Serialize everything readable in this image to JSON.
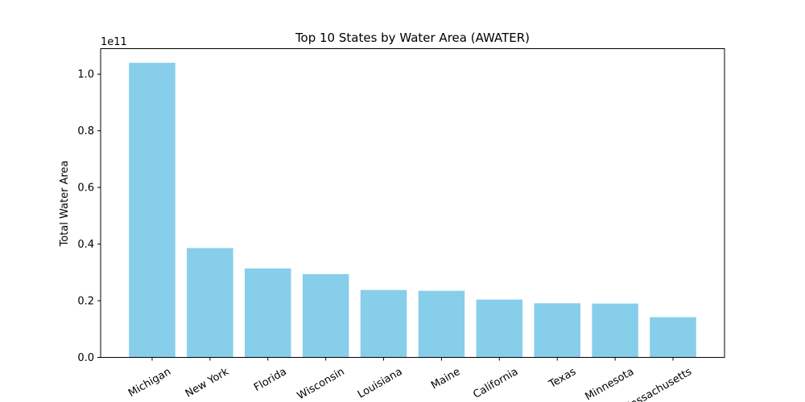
{
  "chart_data": {
    "type": "bar",
    "title": "Top 10 States by Water Area (AWATER)",
    "xlabel": "",
    "ylabel": "Total Water Area",
    "y_offset_label": "1e11",
    "categories": [
      "Michigan",
      "New York",
      "Florida",
      "Wisconsin",
      "Louisiana",
      "Maine",
      "California",
      "Texas",
      "Minnesota",
      "Massachusetts"
    ],
    "values": [
      104000000000,
      38600000000,
      31400000000,
      29400000000,
      23800000000,
      23500000000,
      20400000000,
      19100000000,
      19000000000,
      14200000000
    ],
    "ylim": [
      0,
      109000000000
    ],
    "yticks": [
      0,
      20000000000,
      40000000000,
      60000000000,
      80000000000,
      100000000000
    ],
    "ytick_labels": [
      "0.0",
      "0.2",
      "0.4",
      "0.6",
      "0.8",
      "1.0"
    ],
    "bar_color": "#87ceeb",
    "grid": false,
    "legend": "none"
  }
}
